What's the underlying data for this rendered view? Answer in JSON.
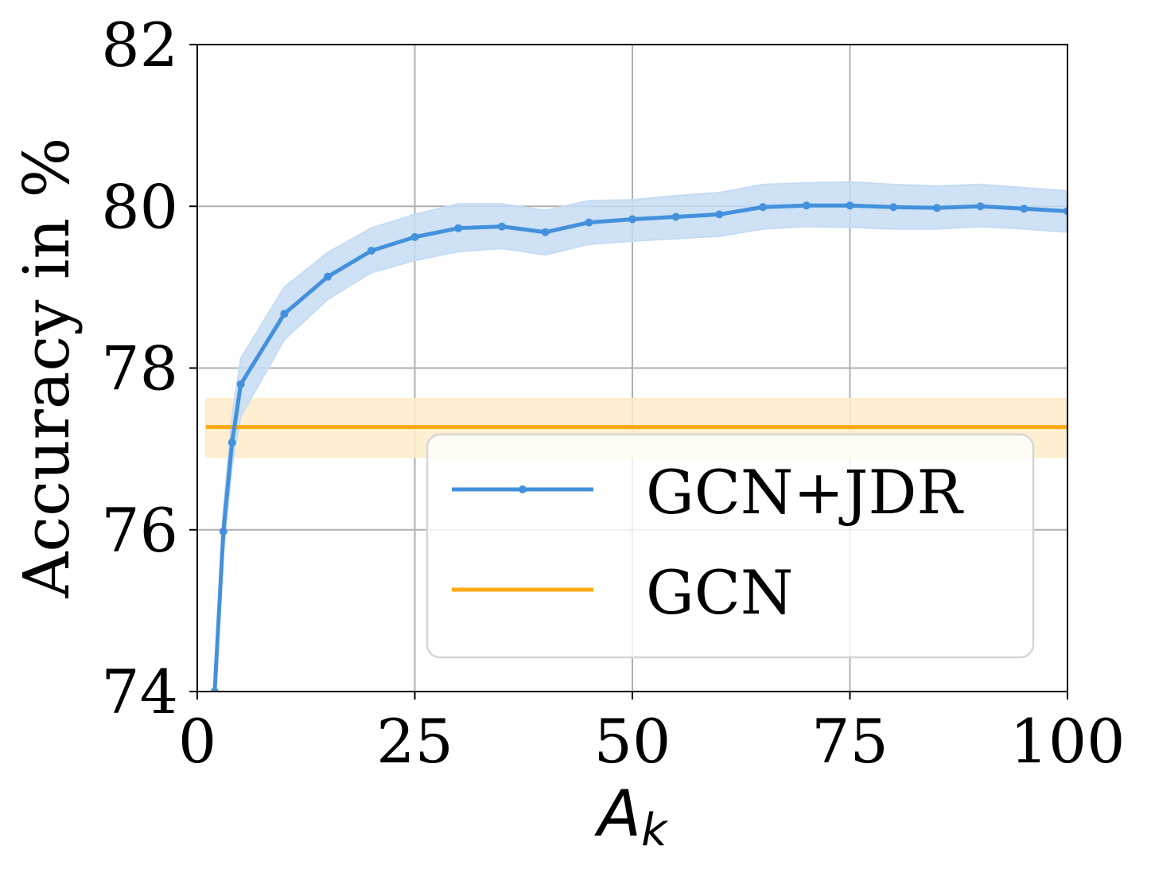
{
  "chart_data": {
    "type": "line",
    "xlabel": "A",
    "xlabel_subscript": "k",
    "ylabel": "Accuracy in %",
    "xlim": [
      0,
      100
    ],
    "ylim": [
      74,
      82
    ],
    "xticks": [
      "0",
      "25",
      "50",
      "75",
      "100"
    ],
    "yticks": [
      "74",
      "76",
      "78",
      "80",
      "82"
    ],
    "grid": true,
    "legend_position": "lower-right",
    "series": [
      {
        "name": "GCN+JDR",
        "color": "#4391dd",
        "band_color": "#c6dcf3",
        "marker": "dot",
        "x": [
          2,
          3,
          4,
          5,
          10,
          15,
          20,
          25,
          30,
          35,
          40,
          45,
          50,
          55,
          60,
          65,
          70,
          75,
          80,
          85,
          90,
          95,
          100
        ],
        "y": [
          74.0,
          75.98,
          77.08,
          77.8,
          78.67,
          79.13,
          79.45,
          79.62,
          79.73,
          79.75,
          79.68,
          79.8,
          79.84,
          79.87,
          79.9,
          79.99,
          80.01,
          80.01,
          79.99,
          79.98,
          80.0,
          79.97,
          79.94
        ],
        "lower": [
          73.8,
          75.7,
          76.8,
          77.4,
          78.35,
          78.85,
          79.18,
          79.33,
          79.44,
          79.48,
          79.4,
          79.53,
          79.57,
          79.6,
          79.63,
          79.72,
          79.75,
          79.74,
          79.72,
          79.72,
          79.75,
          79.72,
          79.68
        ],
        "upper": [
          74.2,
          76.25,
          77.4,
          78.12,
          79.0,
          79.43,
          79.73,
          79.9,
          80.03,
          80.03,
          79.95,
          80.07,
          80.08,
          80.13,
          80.17,
          80.27,
          80.29,
          80.3,
          80.27,
          80.25,
          80.27,
          80.23,
          80.19
        ]
      },
      {
        "name": "GCN",
        "color": "#ffaa14",
        "band_color": "#ffecc9",
        "x": [
          1,
          100
        ],
        "y": [
          77.27,
          77.27
        ],
        "lower": [
          76.9,
          76.9
        ],
        "upper": [
          77.62,
          77.62
        ]
      }
    ]
  }
}
